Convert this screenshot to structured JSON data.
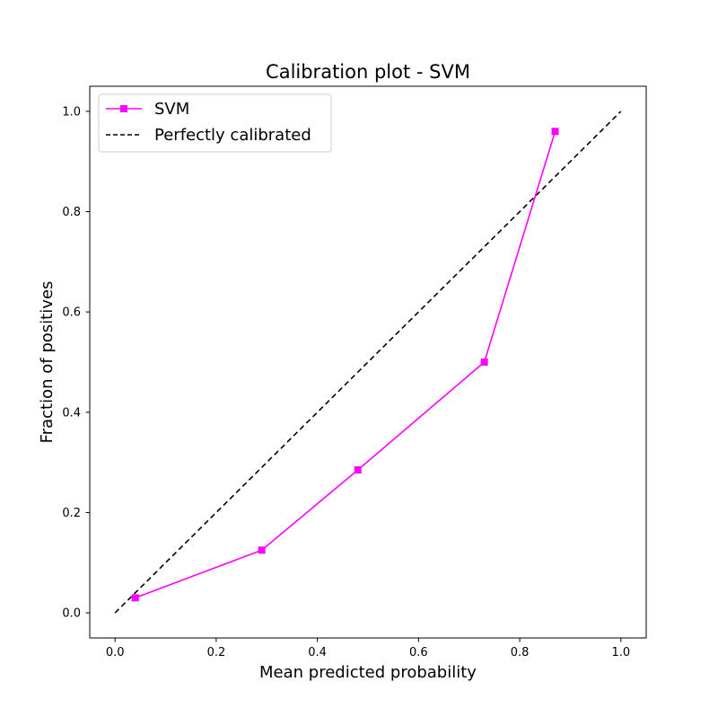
{
  "chart_data": {
    "type": "line",
    "title": "Calibration plot - SVM",
    "xlabel": "Mean predicted probability",
    "ylabel": "Fraction of positives",
    "xlim": [
      -0.05,
      1.05
    ],
    "ylim": [
      -0.05,
      1.05
    ],
    "xticks": [
      "0.0",
      "0.2",
      "0.4",
      "0.6",
      "0.8",
      "1.0"
    ],
    "yticks": [
      "0.0",
      "0.2",
      "0.4",
      "0.6",
      "0.8",
      "1.0"
    ],
    "grid": false,
    "legend_position": "top-left",
    "series": [
      {
        "name": "SVM",
        "color": "#ff00ff",
        "marker": "square",
        "x": [
          0.04,
          0.29,
          0.48,
          0.73,
          0.87
        ],
        "y": [
          0.03,
          0.125,
          0.285,
          0.5,
          0.96
        ]
      },
      {
        "name": "Perfectly calibrated",
        "color": "#000000",
        "line_style": "dashed",
        "x": [
          0.0,
          1.0
        ],
        "y": [
          0.0,
          1.0
        ]
      }
    ]
  }
}
